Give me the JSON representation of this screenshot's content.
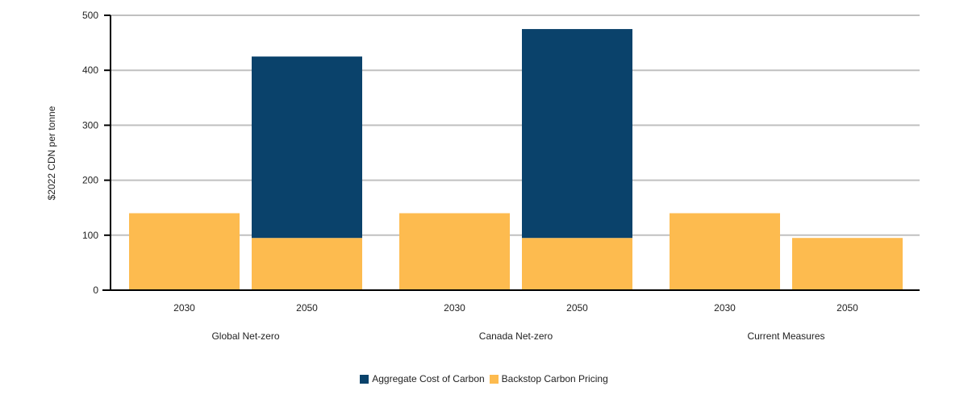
{
  "chart_data": {
    "type": "bar",
    "stacked": true,
    "ylabel": "$2022 CDN per tonne",
    "ylim": [
      0,
      500
    ],
    "yticks": [
      0,
      100,
      200,
      300,
      400,
      500
    ],
    "grid": true,
    "legend_position": "bottom",
    "groups": [
      {
        "label": "Global Net-zero",
        "categories": [
          "2030",
          "2050"
        ]
      },
      {
        "label": "Canada Net-zero",
        "categories": [
          "2030",
          "2050"
        ]
      },
      {
        "label": "Current Measures",
        "categories": [
          "2030",
          "2050"
        ]
      }
    ],
    "series": [
      {
        "name": "Backstop Carbon Pricing",
        "color": "#fdbb4f",
        "values": [
          140,
          95,
          140,
          95,
          140,
          95
        ]
      },
      {
        "name": "Aggregate Cost of Carbon",
        "color": "#0a426b",
        "values": [
          0,
          330,
          0,
          380,
          0,
          0
        ]
      }
    ],
    "legend": [
      "Aggregate Cost of Carbon",
      "Backstop Carbon Pricing"
    ]
  }
}
